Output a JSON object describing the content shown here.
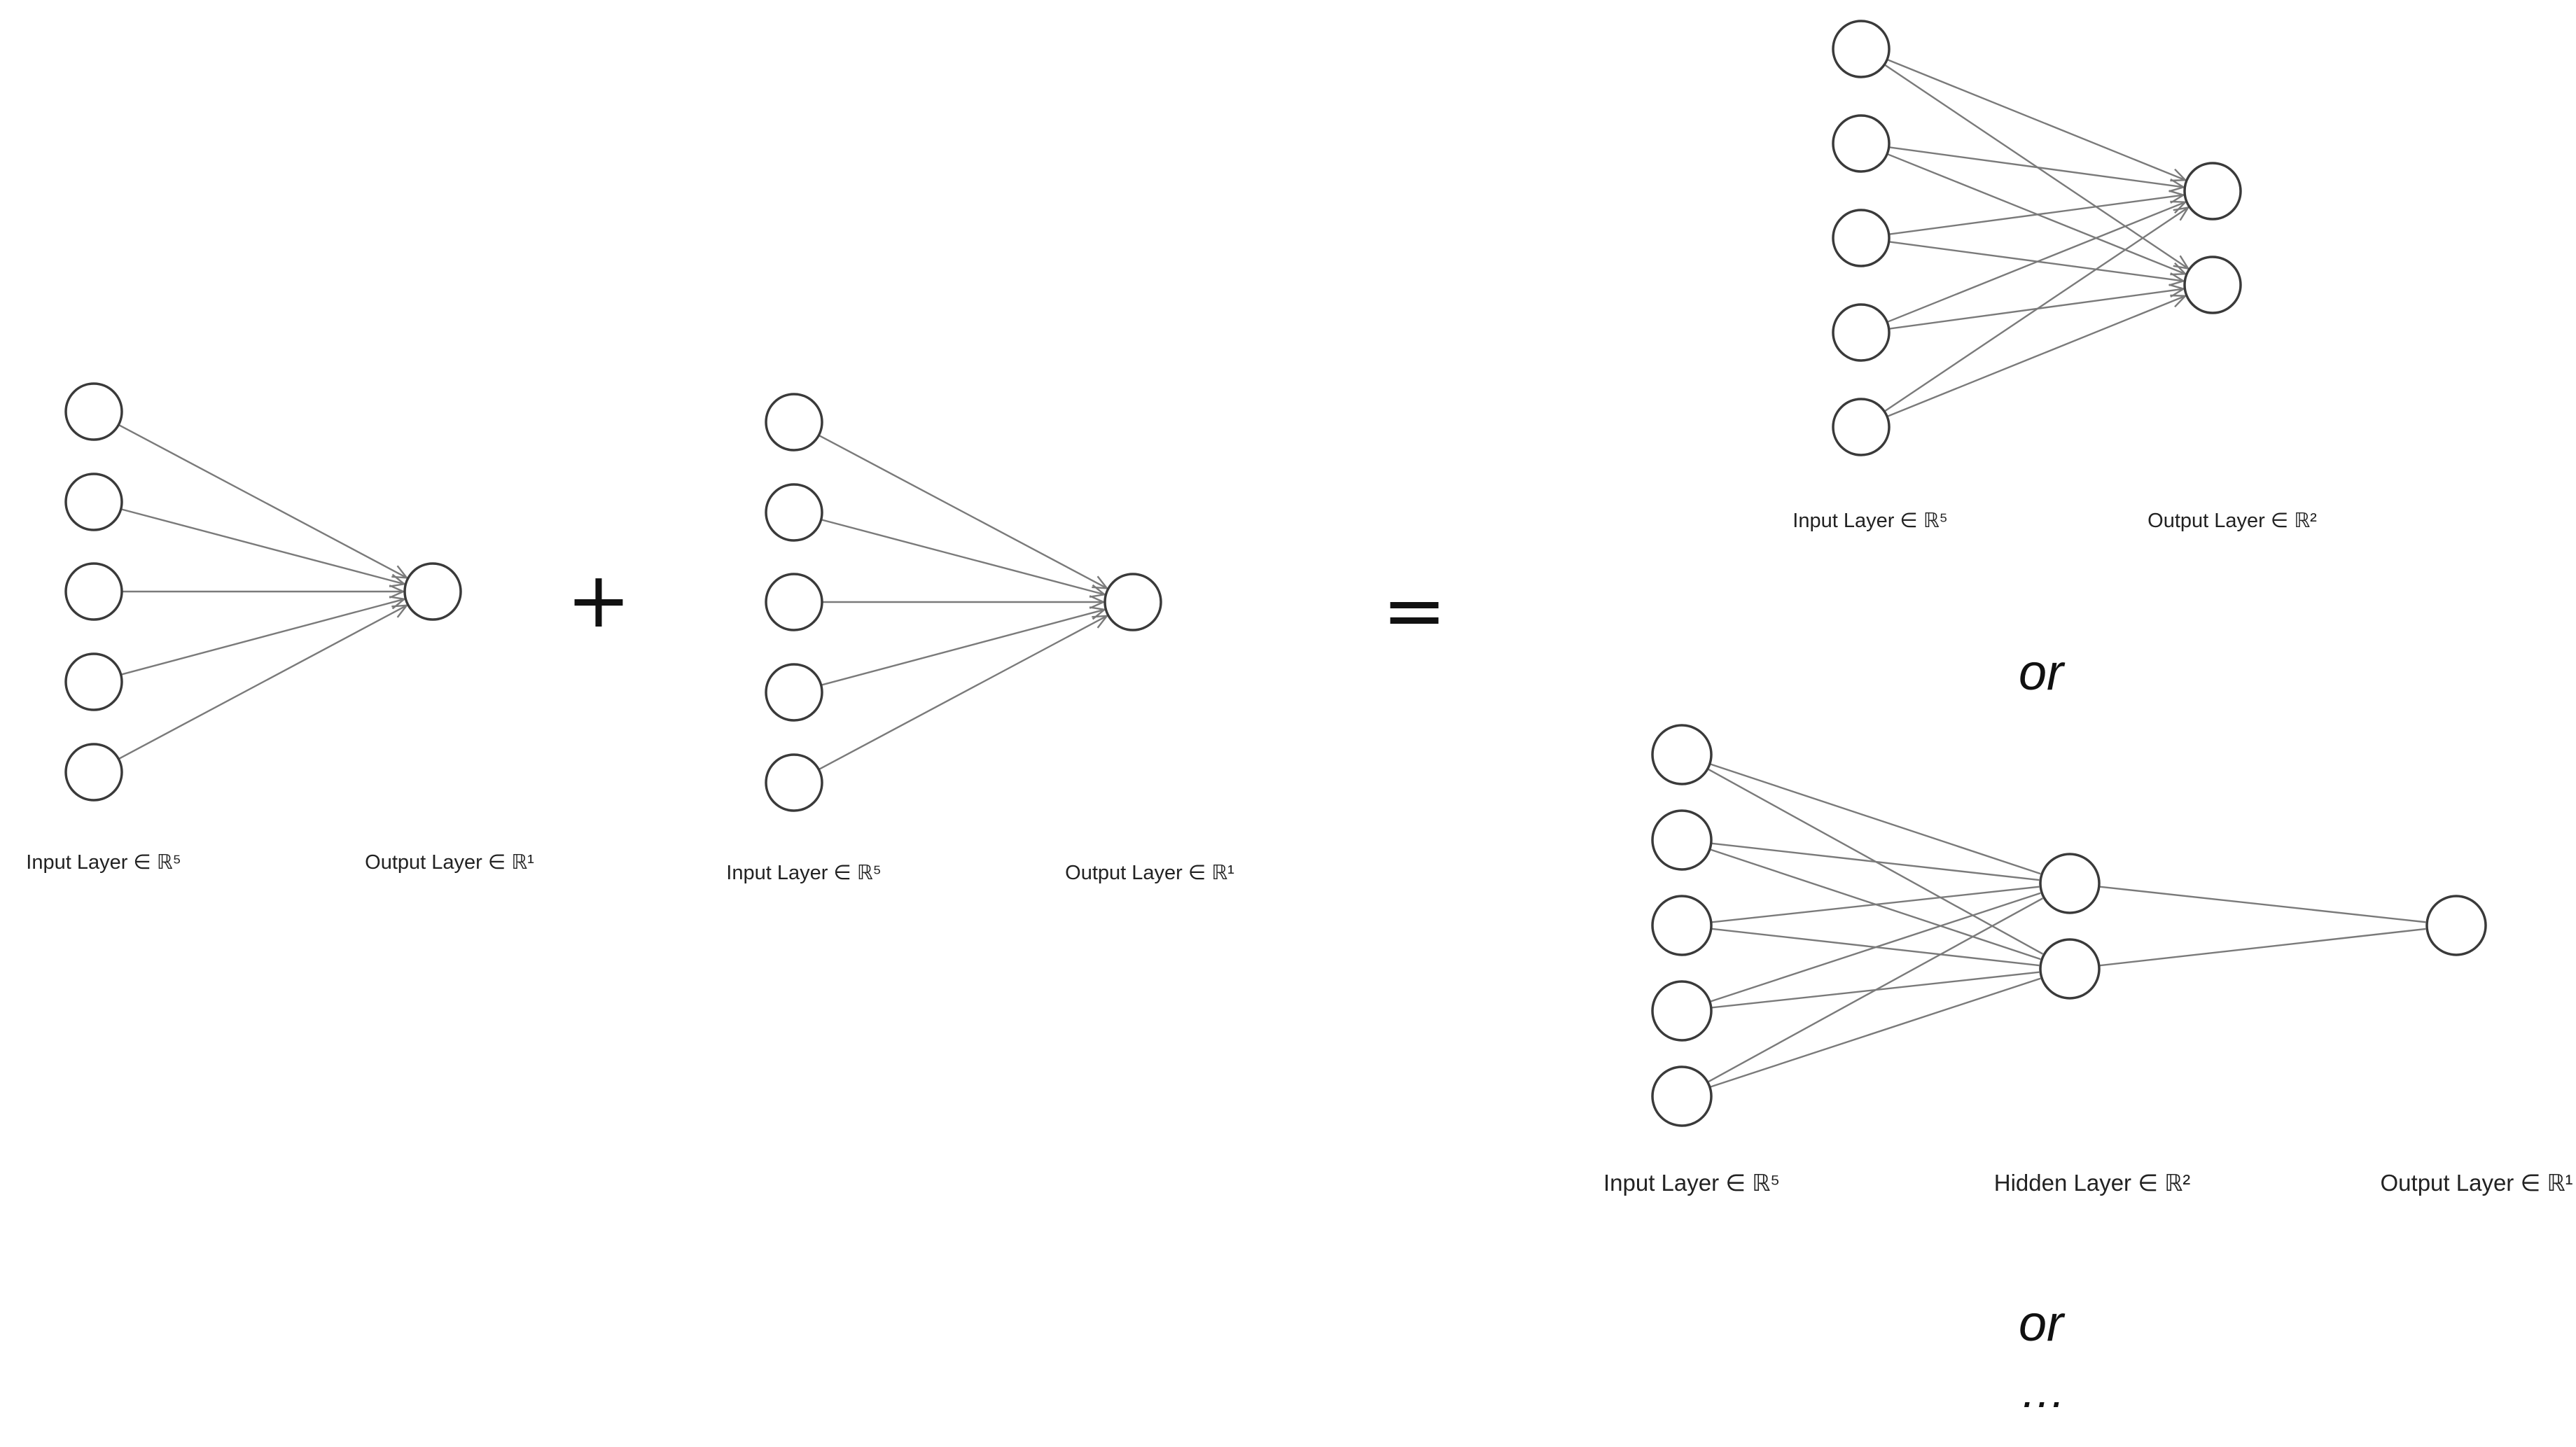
{
  "diagram": {
    "net_left": {
      "input_label": "Input Layer ∈ ℝ⁵",
      "output_label": "Output Layer ∈ ℝ¹"
    },
    "plus": "+",
    "net_middle": {
      "input_label": "Input Layer ∈ ℝ⁵",
      "output_label": "Output Layer ∈ ℝ¹"
    },
    "equals": "=",
    "net_right_top": {
      "input_label": "Input Layer ∈ ℝ⁵",
      "output_label": "Output Layer ∈ ℝ²"
    },
    "or_1": "or",
    "net_right_bottom": {
      "input_label": "Input Layer ∈ ℝ⁵",
      "hidden_label": "Hidden Layer ∈ ℝ²",
      "output_label": "Output Layer ∈ ℝ¹"
    },
    "or_2": "or",
    "ellipsis": "…",
    "colors": {
      "node_stroke": "#3a3a3a",
      "edge": "#7a7a7a",
      "text": "#222222",
      "background": "#ffffff"
    }
  }
}
